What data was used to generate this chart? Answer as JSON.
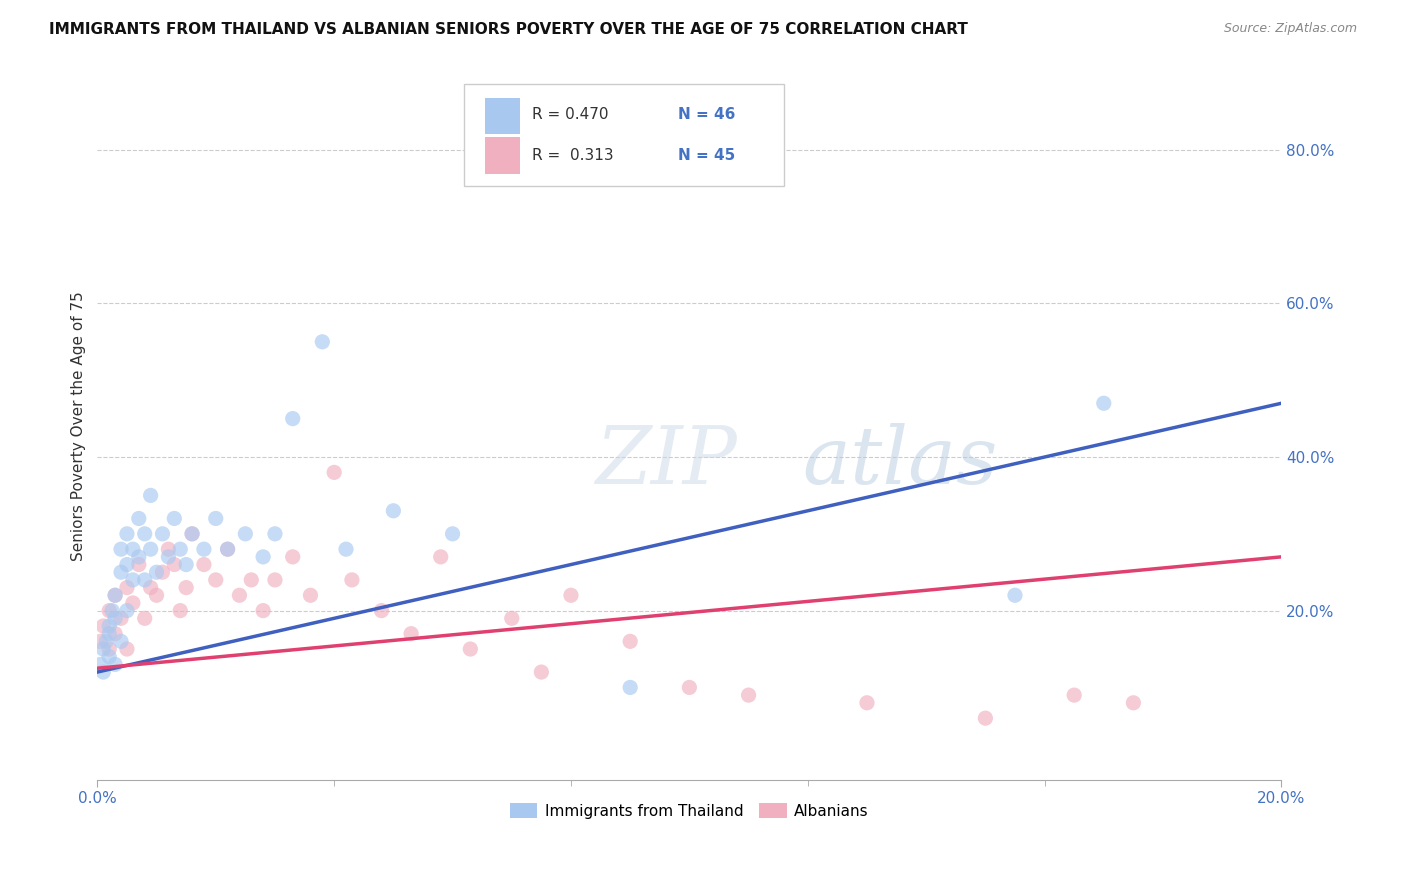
{
  "title": "IMMIGRANTS FROM THAILAND VS ALBANIAN SENIORS POVERTY OVER THE AGE OF 75 CORRELATION CHART",
  "source": "Source: ZipAtlas.com",
  "ylabel": "Seniors Poverty Over the Age of 75",
  "xlim": [
    0.0,
    0.2
  ],
  "ylim": [
    -0.02,
    0.9
  ],
  "xtick_positions": [
    0.0,
    0.2
  ],
  "xtick_labels": [
    "0.0%",
    "20.0%"
  ],
  "yticks_right": [
    0.2,
    0.4,
    0.6,
    0.8
  ],
  "ytick_right_labels": [
    "20.0%",
    "40.0%",
    "60.0%",
    "80.0%"
  ],
  "blue_color": "#a8c8f0",
  "pink_color": "#f0b0c0",
  "blue_line_color": "#4060c0",
  "pink_line_color": "#e04070",
  "legend_r_blue": "R = 0.470",
  "legend_n_blue": "N = 46",
  "legend_r_pink": "R =  0.313",
  "legend_n_pink": "N = 45",
  "label_blue": "Immigrants from Thailand",
  "label_pink": "Albanians",
  "title_fontsize": 11,
  "source_fontsize": 9,
  "blue_scatter_x": [
    0.0005,
    0.001,
    0.001,
    0.0015,
    0.002,
    0.002,
    0.002,
    0.0025,
    0.003,
    0.003,
    0.003,
    0.004,
    0.004,
    0.004,
    0.005,
    0.005,
    0.005,
    0.006,
    0.006,
    0.007,
    0.007,
    0.008,
    0.008,
    0.009,
    0.009,
    0.01,
    0.011,
    0.012,
    0.013,
    0.014,
    0.015,
    0.016,
    0.018,
    0.02,
    0.022,
    0.025,
    0.028,
    0.03,
    0.033,
    0.038,
    0.042,
    0.05,
    0.06,
    0.09,
    0.155,
    0.17
  ],
  "blue_scatter_y": [
    0.13,
    0.15,
    0.12,
    0.16,
    0.14,
    0.18,
    0.17,
    0.2,
    0.13,
    0.19,
    0.22,
    0.25,
    0.28,
    0.16,
    0.2,
    0.26,
    0.3,
    0.24,
    0.28,
    0.27,
    0.32,
    0.3,
    0.24,
    0.28,
    0.35,
    0.25,
    0.3,
    0.27,
    0.32,
    0.28,
    0.26,
    0.3,
    0.28,
    0.32,
    0.28,
    0.3,
    0.27,
    0.3,
    0.45,
    0.55,
    0.28,
    0.33,
    0.3,
    0.1,
    0.22,
    0.47
  ],
  "pink_scatter_x": [
    0.0005,
    0.001,
    0.002,
    0.002,
    0.003,
    0.003,
    0.004,
    0.005,
    0.005,
    0.006,
    0.007,
    0.008,
    0.009,
    0.01,
    0.011,
    0.012,
    0.013,
    0.014,
    0.015,
    0.016,
    0.018,
    0.02,
    0.022,
    0.024,
    0.026,
    0.028,
    0.03,
    0.033,
    0.036,
    0.04,
    0.043,
    0.048,
    0.053,
    0.058,
    0.063,
    0.07,
    0.075,
    0.08,
    0.09,
    0.1,
    0.11,
    0.13,
    0.15,
    0.165,
    0.175
  ],
  "pink_scatter_y": [
    0.16,
    0.18,
    0.15,
    0.2,
    0.17,
    0.22,
    0.19,
    0.15,
    0.23,
    0.21,
    0.26,
    0.19,
    0.23,
    0.22,
    0.25,
    0.28,
    0.26,
    0.2,
    0.23,
    0.3,
    0.26,
    0.24,
    0.28,
    0.22,
    0.24,
    0.2,
    0.24,
    0.27,
    0.22,
    0.38,
    0.24,
    0.2,
    0.17,
    0.27,
    0.15,
    0.19,
    0.12,
    0.22,
    0.16,
    0.1,
    0.09,
    0.08,
    0.06,
    0.09,
    0.08
  ],
  "blue_line_x": [
    0.0,
    0.2
  ],
  "blue_line_y": [
    0.12,
    0.47
  ],
  "pink_line_x": [
    0.0,
    0.2
  ],
  "pink_line_y": [
    0.125,
    0.27
  ],
  "grid_yticks": [
    0.2,
    0.4,
    0.6,
    0.8
  ],
  "grid_color": "#cccccc",
  "background_color": "#ffffff",
  "right_axis_color": "#4472c4",
  "watermark_zip_color": "#c0cce0",
  "watermark_atlas_color": "#b0c8e0"
}
